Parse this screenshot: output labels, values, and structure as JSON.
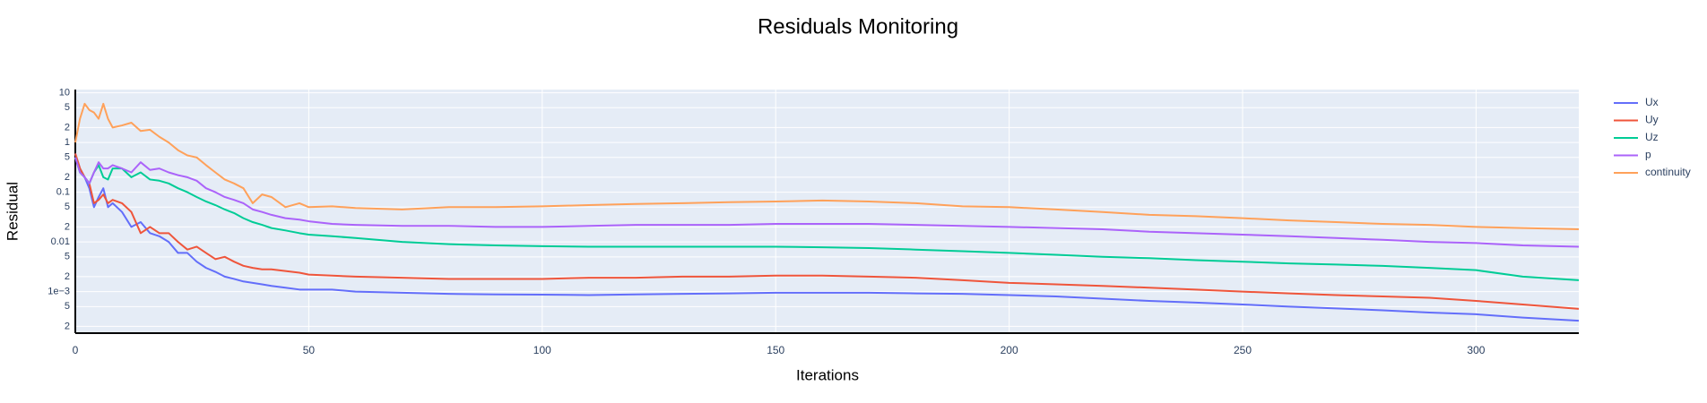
{
  "chart_data": {
    "type": "line",
    "title": "Residuals Monitoring",
    "x_label": "Iterations",
    "y_label": "Residual",
    "log_y": true,
    "grid": true,
    "legend": "right",
    "xlim": [
      0,
      322
    ],
    "xticks": [
      0,
      50,
      100,
      150,
      200,
      250,
      300
    ],
    "ylim": [
      0.000146,
      11.6
    ],
    "yticks": [
      10,
      {
        "value": 5,
        "label": "5"
      },
      {
        "value": 2,
        "label": "2"
      },
      1,
      {
        "value": 0.5,
        "label": "5"
      },
      {
        "value": 0.2,
        "label": "2"
      },
      0.1,
      {
        "value": 0.05,
        "label": "5"
      },
      {
        "value": 0.02,
        "label": "2"
      },
      0.01,
      {
        "value": 0.005,
        "label": "5"
      },
      {
        "value": 0.002,
        "label": "2"
      },
      {
        "value": 0.001,
        "label": "1e−3"
      },
      {
        "value": 0.0005,
        "label": "5"
      },
      {
        "value": 0.0002,
        "label": "2"
      }
    ],
    "x": [
      0,
      1,
      2,
      3,
      4,
      5,
      6,
      7,
      8,
      10,
      12,
      14,
      16,
      18,
      20,
      22,
      24,
      26,
      28,
      30,
      32,
      34,
      36,
      38,
      40,
      42,
      45,
      48,
      50,
      55,
      60,
      70,
      80,
      90,
      100,
      110,
      120,
      130,
      140,
      150,
      160,
      170,
      180,
      190,
      200,
      210,
      220,
      230,
      240,
      250,
      260,
      270,
      280,
      290,
      300,
      310,
      322
    ],
    "series": [
      {
        "name": "Ux",
        "color": "#636efa",
        "values": [
          0.6,
          0.3,
          0.2,
          0.12,
          0.05,
          0.08,
          0.12,
          0.05,
          0.06,
          0.04,
          0.02,
          0.025,
          0.015,
          0.013,
          0.01,
          0.006,
          0.006,
          0.004,
          0.003,
          0.0025,
          0.002,
          0.0018,
          0.0016,
          0.0015,
          0.0014,
          0.0013,
          0.0012,
          0.0011,
          0.0011,
          0.0011,
          0.001,
          0.00095,
          0.0009,
          0.00088,
          0.00087,
          0.00085,
          0.00088,
          0.0009,
          0.00092,
          0.00095,
          0.00095,
          0.00095,
          0.00092,
          0.0009,
          0.00085,
          0.0008,
          0.00072,
          0.00065,
          0.0006,
          0.00055,
          0.0005,
          0.00046,
          0.00042,
          0.00038,
          0.00035,
          0.0003,
          0.00026
        ]
      },
      {
        "name": "Uy",
        "color": "#EF553B",
        "values": [
          0.6,
          0.3,
          0.2,
          0.15,
          0.06,
          0.07,
          0.09,
          0.06,
          0.07,
          0.06,
          0.04,
          0.015,
          0.02,
          0.015,
          0.015,
          0.01,
          0.007,
          0.008,
          0.006,
          0.0045,
          0.005,
          0.004,
          0.0033,
          0.003,
          0.0028,
          0.0028,
          0.0026,
          0.0024,
          0.0022,
          0.0021,
          0.002,
          0.0019,
          0.0018,
          0.0018,
          0.0018,
          0.0019,
          0.0019,
          0.002,
          0.002,
          0.0021,
          0.0021,
          0.002,
          0.0019,
          0.0017,
          0.0015,
          0.0014,
          0.0013,
          0.0012,
          0.0011,
          0.001,
          0.00092,
          0.00085,
          0.0008,
          0.00075,
          0.00065,
          0.00055,
          0.00045
        ]
      },
      {
        "name": "Uz",
        "color": "#00cc96",
        "values": [
          0.5,
          0.25,
          0.2,
          0.15,
          0.25,
          0.35,
          0.2,
          0.18,
          0.3,
          0.3,
          0.2,
          0.25,
          0.18,
          0.17,
          0.15,
          0.12,
          0.1,
          0.08,
          0.065,
          0.055,
          0.045,
          0.038,
          0.03,
          0.025,
          0.022,
          0.019,
          0.017,
          0.015,
          0.014,
          0.013,
          0.012,
          0.01,
          0.009,
          0.0085,
          0.0082,
          0.008,
          0.008,
          0.008,
          0.008,
          0.008,
          0.0078,
          0.0075,
          0.007,
          0.0065,
          0.006,
          0.0055,
          0.005,
          0.0047,
          0.0043,
          0.004,
          0.0037,
          0.0035,
          0.0033,
          0.003,
          0.0027,
          0.002,
          0.0017
        ]
      },
      {
        "name": "p",
        "color": "#ab63fa",
        "values": [
          0.5,
          0.25,
          0.2,
          0.15,
          0.25,
          0.4,
          0.3,
          0.3,
          0.35,
          0.3,
          0.25,
          0.4,
          0.28,
          0.3,
          0.25,
          0.22,
          0.2,
          0.17,
          0.12,
          0.1,
          0.08,
          0.07,
          0.06,
          0.045,
          0.04,
          0.035,
          0.03,
          0.028,
          0.026,
          0.023,
          0.022,
          0.021,
          0.021,
          0.02,
          0.02,
          0.021,
          0.022,
          0.022,
          0.022,
          0.023,
          0.023,
          0.023,
          0.022,
          0.021,
          0.02,
          0.019,
          0.018,
          0.016,
          0.015,
          0.014,
          0.013,
          0.012,
          0.011,
          0.01,
          0.0095,
          0.0085,
          0.008
        ]
      },
      {
        "name": "continuity",
        "color": "#FFA15A",
        "values": [
          1,
          3,
          6,
          4.5,
          4,
          3,
          6,
          3,
          2,
          2.2,
          2.5,
          1.7,
          1.8,
          1.3,
          1,
          0.7,
          0.55,
          0.5,
          0.35,
          0.25,
          0.18,
          0.15,
          0.12,
          0.06,
          0.09,
          0.08,
          0.05,
          0.06,
          0.05,
          0.052,
          0.048,
          0.045,
          0.05,
          0.05,
          0.052,
          0.055,
          0.058,
          0.06,
          0.063,
          0.065,
          0.068,
          0.065,
          0.06,
          0.052,
          0.05,
          0.045,
          0.04,
          0.035,
          0.033,
          0.03,
          0.027,
          0.025,
          0.023,
          0.022,
          0.02,
          0.019,
          0.018
        ]
      }
    ]
  }
}
